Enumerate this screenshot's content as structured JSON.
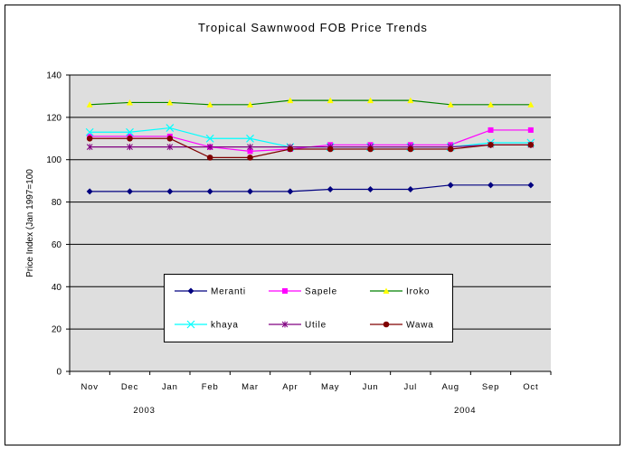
{
  "chart_data": {
    "type": "line",
    "title": "Tropical Sawnwood FOB Price Trends",
    "xlabel": "",
    "ylabel": "Price Index (Jan 1997=100",
    "ylim": [
      0,
      140
    ],
    "yticks": [
      0,
      20,
      40,
      60,
      80,
      100,
      120,
      140
    ],
    "grid": true,
    "legend_position": "lower-center",
    "categories": [
      "Nov",
      "Dec",
      "Jan",
      "Feb",
      "Mar",
      "Apr",
      "May",
      "Jun",
      "Jul",
      "Aug",
      "Sep",
      "Oct"
    ],
    "year_labels": [
      {
        "label": "2003",
        "category": "Dec"
      },
      {
        "label": "2004",
        "category": "Aug"
      }
    ],
    "plot_background": "#dedede",
    "series": [
      {
        "name": "Meranti",
        "color": "#000080",
        "marker": "diamond",
        "values": [
          85,
          85,
          85,
          85,
          85,
          85,
          86,
          86,
          86,
          88,
          88,
          88
        ]
      },
      {
        "name": "Sapele",
        "color": "#ff00ff",
        "marker": "square",
        "values": [
          111,
          111,
          111,
          106,
          104,
          105,
          107,
          107,
          107,
          107,
          114,
          114
        ]
      },
      {
        "name": "Iroko",
        "color": "#ffff00",
        "line_color": "#008000",
        "marker": "triangle",
        "values": [
          126,
          127,
          127,
          126,
          126,
          128,
          128,
          128,
          128,
          126,
          126,
          126
        ]
      },
      {
        "name": "khaya",
        "color": "#00ffff",
        "marker": "x",
        "values": [
          113,
          113,
          115,
          110,
          110,
          106,
          106,
          106,
          106,
          106,
          108,
          108
        ]
      },
      {
        "name": "Utile",
        "color": "#800080",
        "marker": "star",
        "values": [
          106,
          106,
          106,
          106,
          106,
          106,
          106,
          106,
          106,
          106,
          107,
          107
        ]
      },
      {
        "name": "Wawa",
        "color": "#800000",
        "marker": "circle",
        "values": [
          110,
          110,
          110,
          101,
          101,
          105,
          105,
          105,
          105,
          105,
          107,
          107
        ]
      }
    ]
  }
}
